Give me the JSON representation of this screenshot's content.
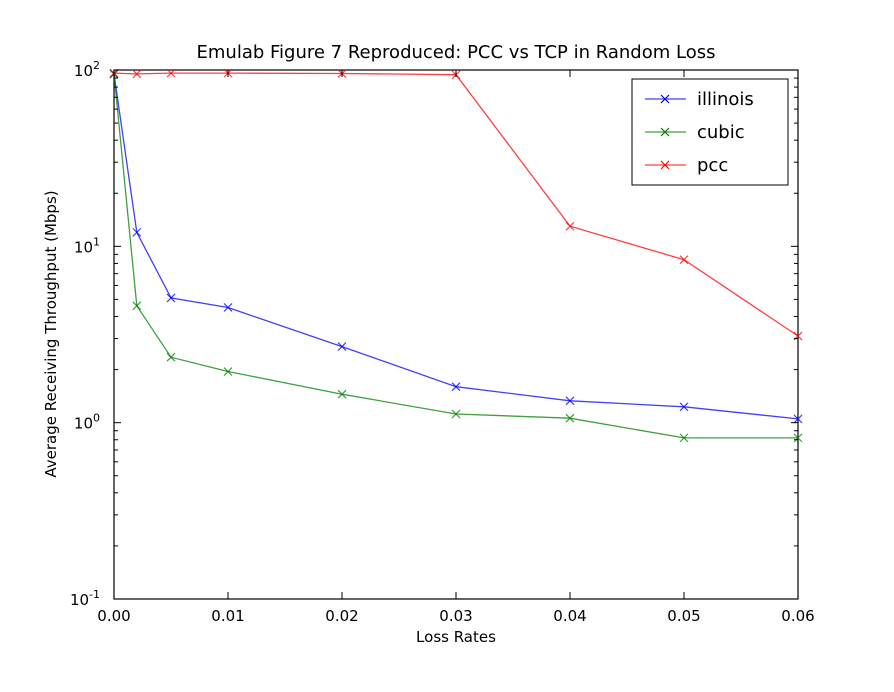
{
  "chart_data": {
    "type": "line",
    "title": "Emulab Figure 7 Reproduced: PCC vs TCP in Random Loss",
    "xlabel": "Loss Rates",
    "ylabel": "Average Receiving Throughput (Mbps)",
    "yscale": "log",
    "xlim": [
      0,
      0.06
    ],
    "ylim": [
      0.1,
      100
    ],
    "grid": false,
    "legend_position": "top-right",
    "x_ticks": [
      "0.00",
      "0.01",
      "0.02",
      "0.03",
      "0.04",
      "0.05",
      "0.06"
    ],
    "y_ticks": [
      {
        "base": "10",
        "exp": "-1"
      },
      {
        "base": "10",
        "exp": "0"
      },
      {
        "base": "10",
        "exp": "1"
      },
      {
        "base": "10",
        "exp": "2"
      }
    ],
    "x": [
      0.0,
      0.002,
      0.005,
      0.01,
      0.02,
      0.03,
      0.04,
      0.05,
      0.06
    ],
    "series": [
      {
        "name": "illinois",
        "color": "#0000ff",
        "values": [
          95,
          12,
          5.1,
          4.5,
          2.7,
          1.6,
          1.33,
          1.23,
          1.05
        ]
      },
      {
        "name": "cubic",
        "color": "#008000",
        "values": [
          95,
          4.6,
          2.35,
          1.95,
          1.45,
          1.12,
          1.06,
          0.82,
          0.82
        ]
      },
      {
        "name": "pcc",
        "color": "#ff0000",
        "values": [
          96,
          95,
          96,
          96,
          95.5,
          94,
          13,
          8.4,
          3.1
        ]
      }
    ]
  }
}
